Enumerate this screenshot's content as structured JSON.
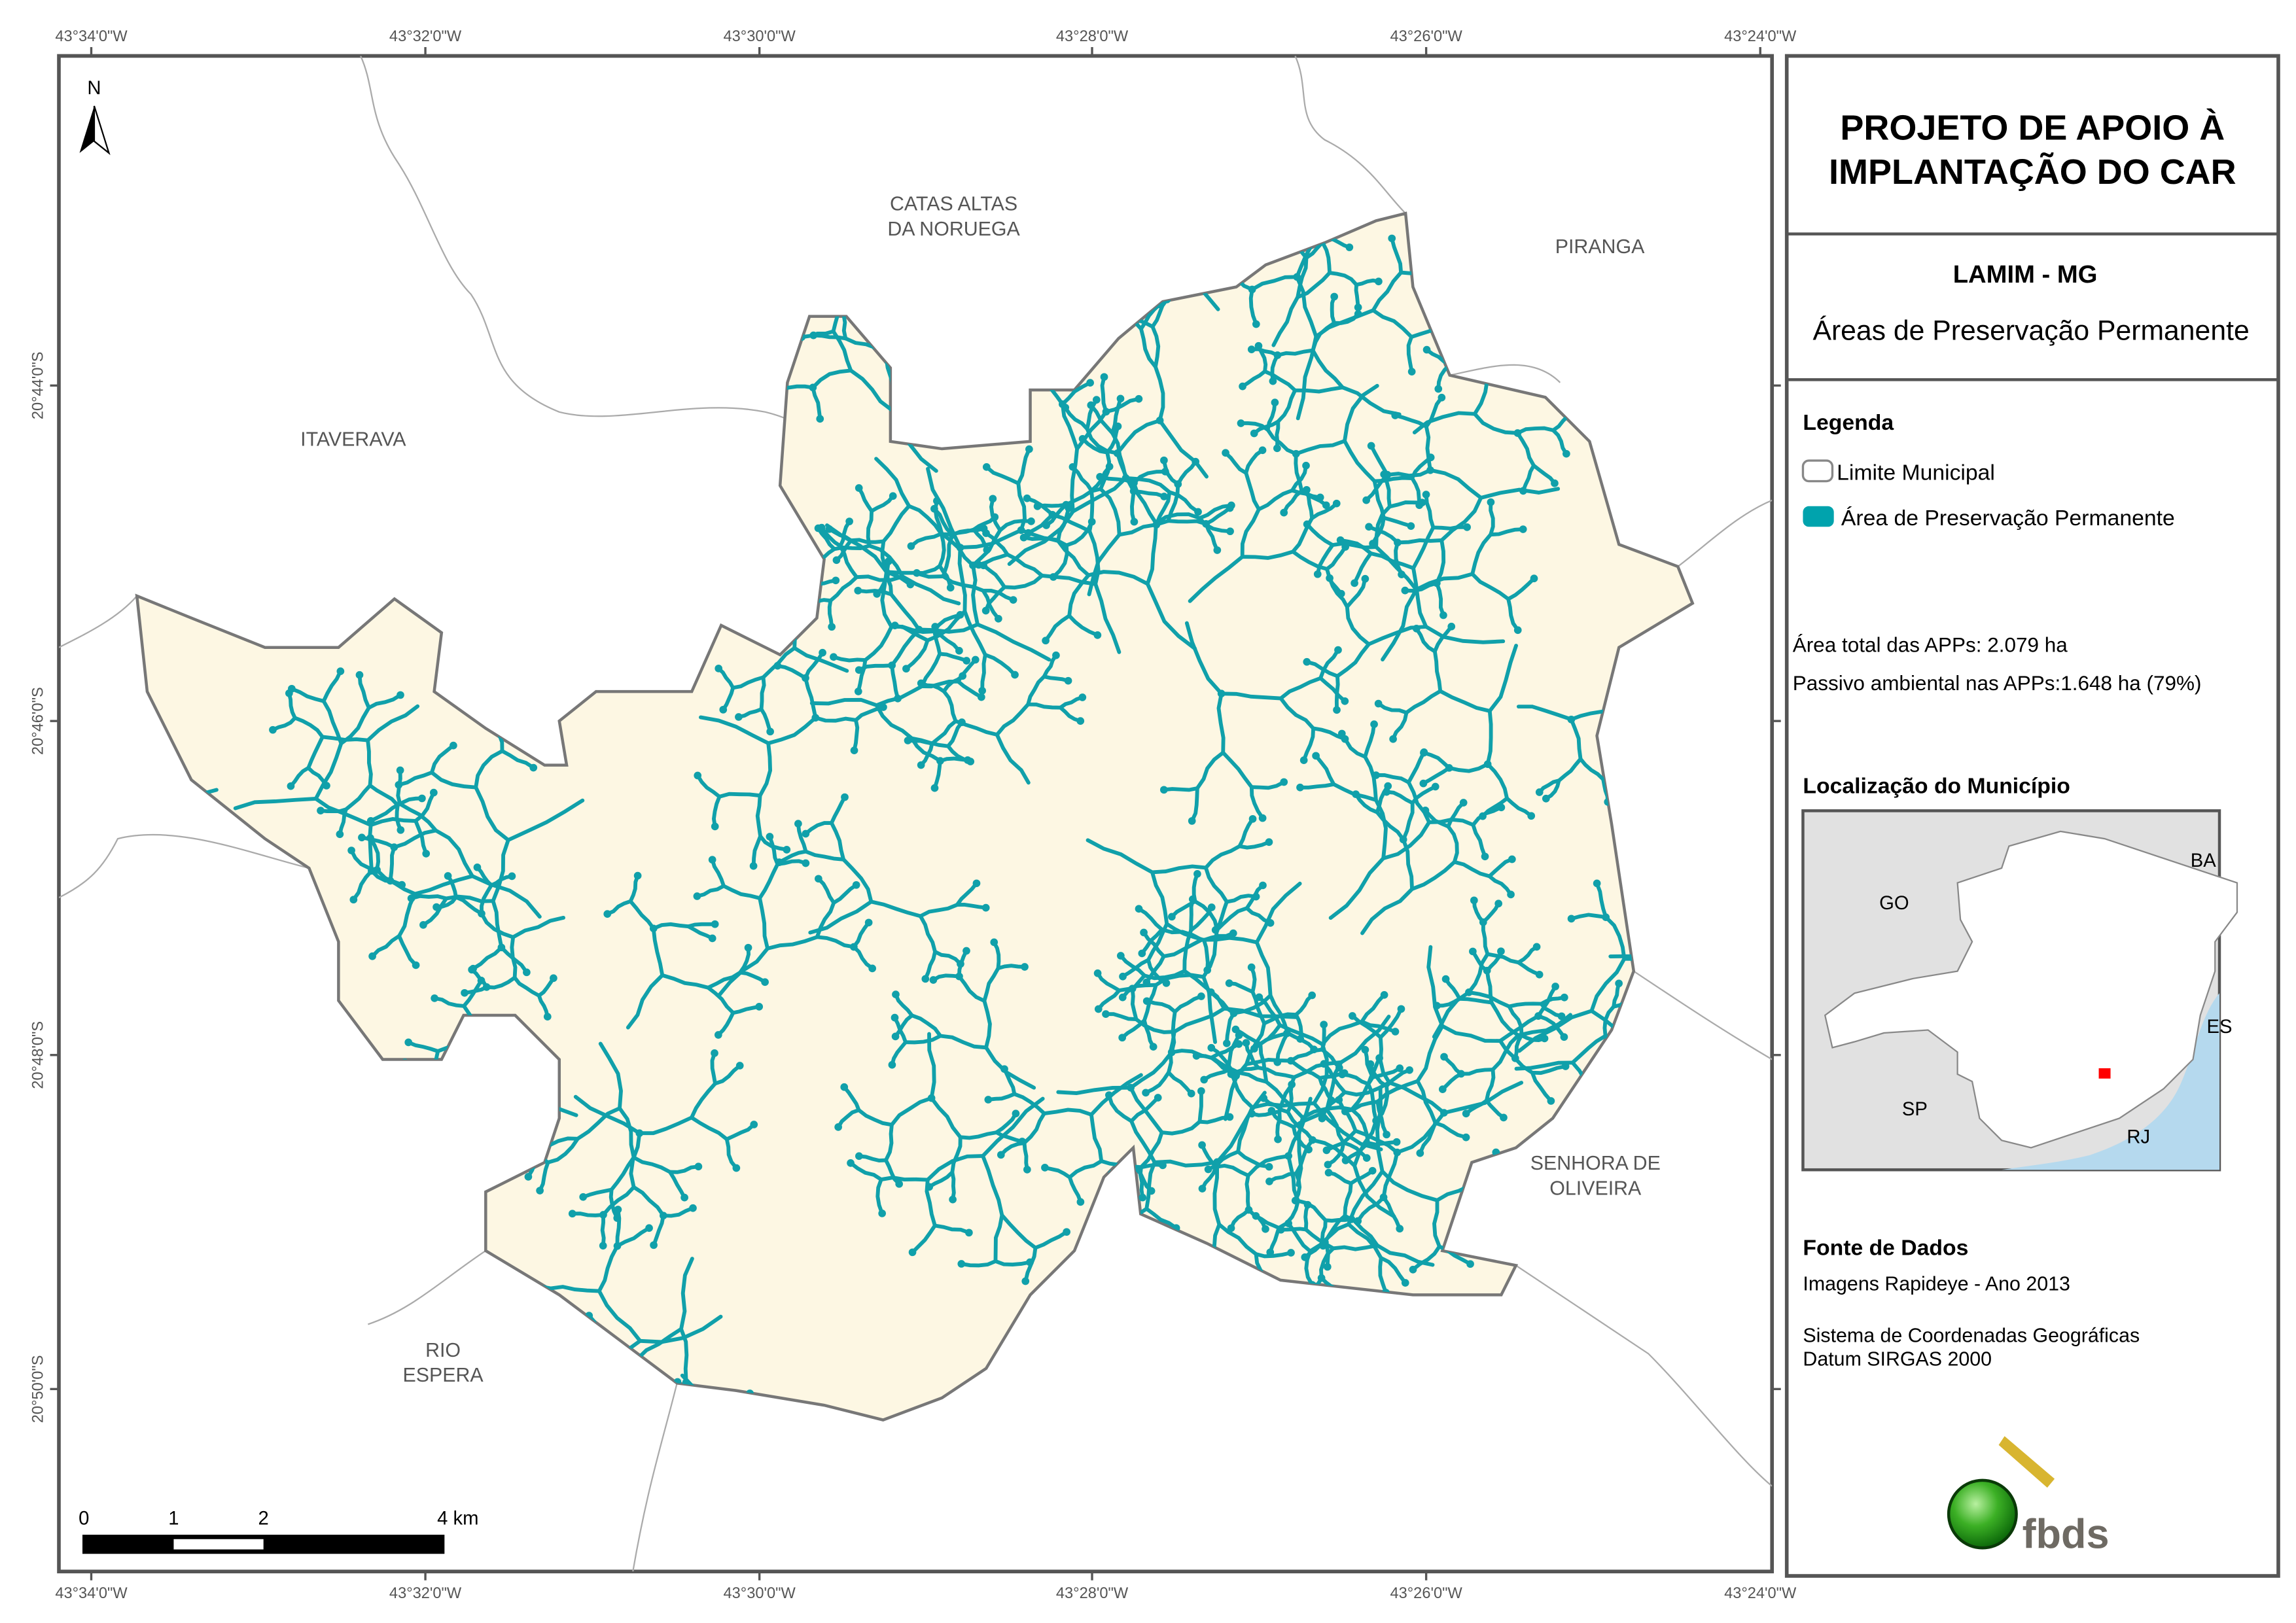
{
  "title": {
    "line1": "PROJETO DE APOIO À",
    "line2": "IMPLANTAÇÃO DO CAR"
  },
  "municipality": "LAMIM - MG",
  "subtitle": "Áreas de Preservação Permanente",
  "legend": {
    "heading": "Legenda",
    "items": [
      {
        "label": "Limite Municipal",
        "color": "#ffffff",
        "stroke": "#888888"
      },
      {
        "label": "Área de Preservação Permanente",
        "color": "#00a3ad"
      }
    ]
  },
  "stats": {
    "total": "Área total das APPs: 2.079 ha",
    "passivo": "Passivo ambiental nas APPs:1.648 ha (79%)"
  },
  "location": {
    "heading": "Localização do Município",
    "states": [
      "BA",
      "GO",
      "ES",
      "SP",
      "RJ"
    ],
    "marker_color": "#ff0000"
  },
  "source": {
    "heading": "Fonte de Dados",
    "line1": "Imagens Rapideye - Ano 2013",
    "line2": "Sistema de Coordenadas Geográficas",
    "line3": "Datum SIRGAS 2000"
  },
  "logo": "fbds",
  "north": "N",
  "scale_bar": {
    "labels": [
      "0",
      "1",
      "2",
      "4 km"
    ]
  },
  "longitude_ticks": [
    "43°34'0\"W",
    "43°32'0\"W",
    "43°30'0\"W",
    "43°28'0\"W",
    "43°26'0\"W",
    "43°24'0\"W"
  ],
  "latitude_ticks": [
    "20°44'0\"S",
    "20°46'0\"S",
    "20°48'0\"S",
    "20°50'0\"S"
  ],
  "neighbors": {
    "catas_altas": [
      "CATAS ALTAS",
      "DA NORUEGA"
    ],
    "piranga": "PIRANGA",
    "itaverava": "ITAVERAVA",
    "senhora": [
      "SENHORA DE",
      "OLIVEIRA"
    ],
    "rio_espera": [
      "RIO",
      "ESPERA"
    ]
  },
  "colors": {
    "municipality_fill": "#fdf7e3",
    "app": "#00a3ad",
    "border": "#777777",
    "ocean": "#b5d9ee",
    "inset_bg": "#e1e1e1"
  }
}
